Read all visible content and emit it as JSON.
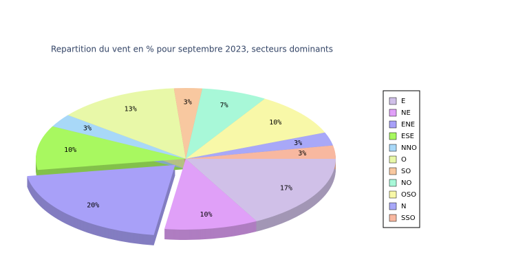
{
  "chart_data": {
    "type": "pie3d",
    "title": "Repartition du vent en % pour septembre 2023, secteurs dominants",
    "categories": [
      "E",
      "NE",
      "ENE",
      "ESE",
      "NNO",
      "O",
      "SO",
      "NO",
      "OSO",
      "N",
      "SSO"
    ],
    "values": [
      17,
      10,
      20,
      10,
      3,
      13,
      3,
      7,
      10,
      3,
      3
    ],
    "value_labels": [
      "17%",
      "10%",
      "20%",
      "10%",
      "3%",
      "13%",
      "3%",
      "7%",
      "10%",
      "3%",
      "3%"
    ],
    "colors": [
      "#d0c0e8",
      "#e0a0f8",
      "#a8a0f8",
      "#a8f860",
      "#a8d8f8",
      "#e8f8a8",
      "#f8c8a0",
      "#a8f8d8",
      "#f8f8a8",
      "#a8a8f8",
      "#f8b8a0"
    ],
    "explode": [
      false,
      false,
      true,
      false,
      false,
      false,
      false,
      false,
      false,
      false,
      false
    ],
    "legend": "right"
  }
}
